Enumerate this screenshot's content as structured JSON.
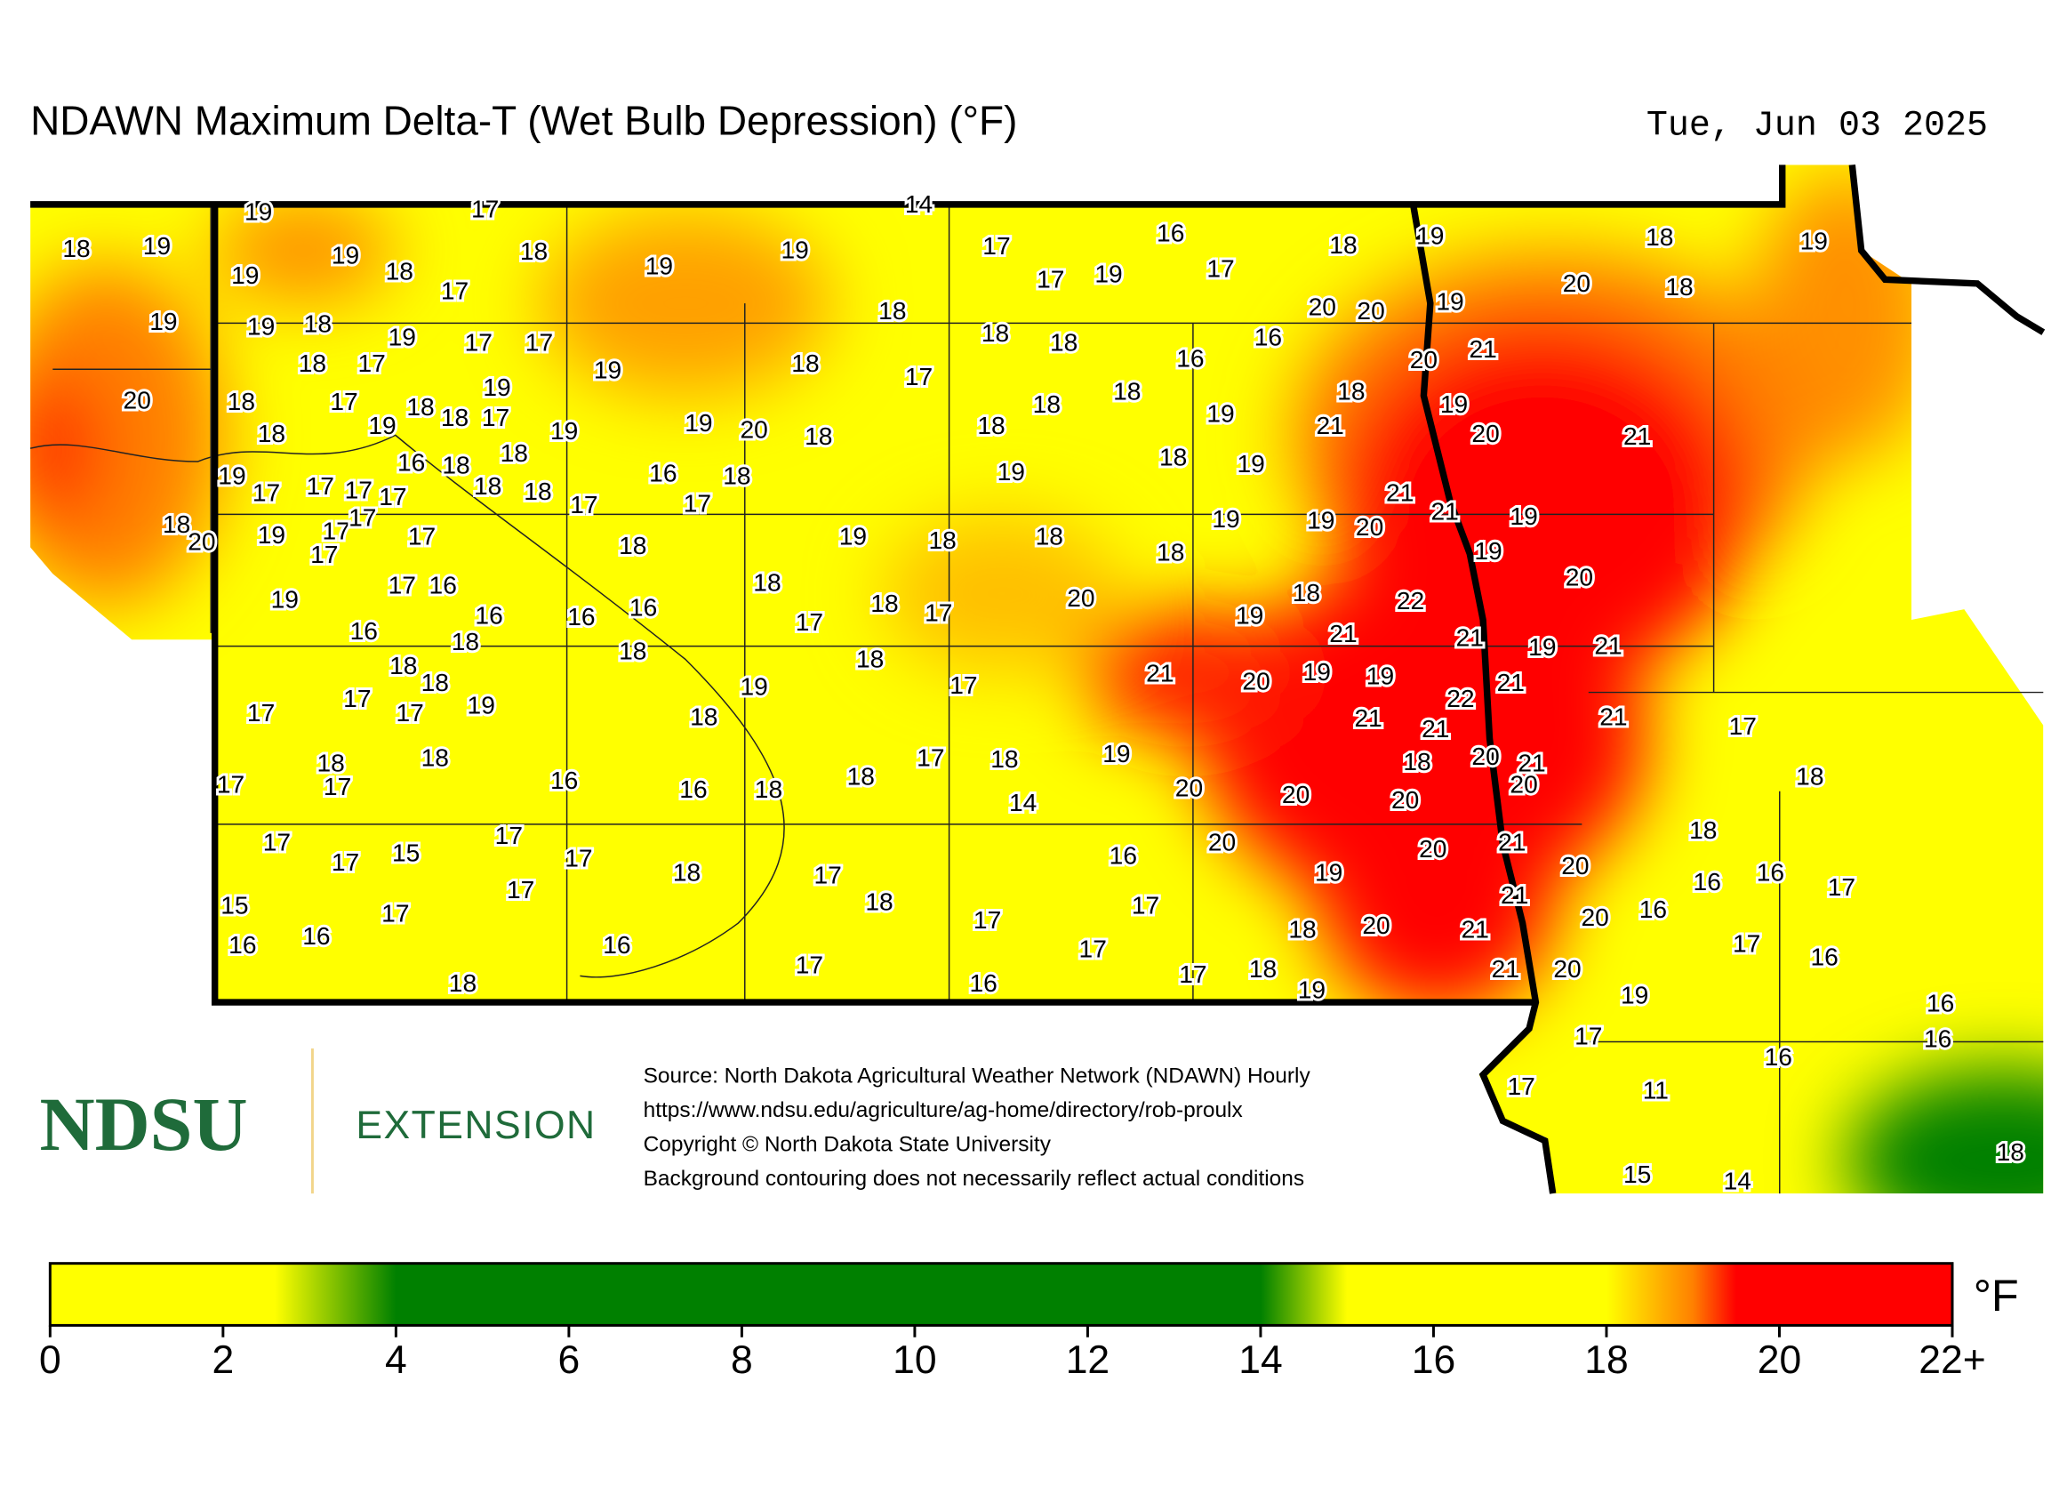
{
  "map": {
    "title": "NDAWN Maximum Delta-T (Wet Bulb Depression) (°F)",
    "date": "Tue, Jun 03 2025",
    "stations": [
      19,
      17,
      14,
      18,
      19,
      19,
      19,
      18,
      17,
      18,
      19,
      19,
      17,
      17,
      19,
      16,
      17,
      18,
      19,
      18,
      19,
      20,
      18,
      19,
      20,
      20,
      19,
      19,
      18,
      19,
      17,
      17,
      19,
      18,
      18,
      18,
      16,
      16,
      20,
      21,
      18,
      17,
      18,
      17,
      20,
      18,
      17,
      19,
      18,
      18,
      17,
      19,
      19,
      18,
      19,
      20,
      18,
      18,
      18,
      18,
      19,
      18,
      19,
      21,
      20,
      21,
      19,
      16,
      18,
      18,
      16,
      18,
      19,
      18,
      19,
      17,
      17,
      17,
      17,
      18,
      18,
      17,
      17,
      21,
      21,
      19,
      18,
      20,
      19,
      17,
      17,
      17,
      17,
      18,
      19,
      18,
      18,
      19,
      19,
      20,
      19,
      18,
      20,
      17,
      16,
      19,
      16,
      16,
      16,
      18,
      18,
      17,
      17,
      20,
      18,
      22,
      19,
      16,
      18,
      18,
      18,
      21,
      21,
      19,
      21,
      18,
      18,
      19,
      17,
      21,
      20,
      19,
      19,
      22,
      21,
      17,
      19,
      17,
      17,
      18,
      21,
      21,
      21,
      17,
      18,
      18,
      17,
      18,
      19,
      18,
      20,
      21,
      20,
      17,
      17,
      16,
      16,
      18,
      18,
      14,
      20,
      20,
      20,
      18,
      17,
      17,
      15,
      17,
      17,
      18,
      17,
      16,
      20,
      20,
      21,
      18,
      19,
      20,
      16,
      16,
      17,
      15,
      17,
      17,
      18,
      17,
      17,
      21,
      20,
      16,
      16,
      16,
      16,
      17,
      17,
      18,
      20,
      21,
      17,
      16,
      18,
      16,
      17,
      18,
      19,
      21,
      20,
      19,
      16,
      17,
      16,
      16,
      17,
      11,
      18,
      15,
      14
    ],
    "logo": {
      "name": "NDSU",
      "unit": "EXTENSION"
    },
    "source": [
      "Source: North Dakota Agricultural Weather Network (NDAWN) Hourly",
      "https://www.ndsu.edu/agriculture/ag-home/directory/rob-proulx",
      "Copyright © North Dakota State University",
      "Background contouring does not necessarily reflect actual conditions"
    ],
    "colorbar": {
      "lim": [
        0,
        22
      ],
      "ticks": [
        0,
        2,
        4,
        6,
        8,
        10,
        12,
        14,
        16,
        18,
        20,
        {
          "value": 22,
          "label": "22+"
        }
      ],
      "unit": "°F",
      "stops": [
        [
          0,
          "#ffff00"
        ],
        [
          2.6,
          "#ffff00"
        ],
        [
          4,
          "#008000"
        ],
        [
          14,
          "#008000"
        ],
        [
          15,
          "#ffff00"
        ],
        [
          18,
          "#ffff00"
        ],
        [
          19,
          "#ff8000"
        ],
        [
          19.5,
          "#ff0000"
        ],
        [
          22,
          "#ff0000"
        ]
      ]
    }
  }
}
